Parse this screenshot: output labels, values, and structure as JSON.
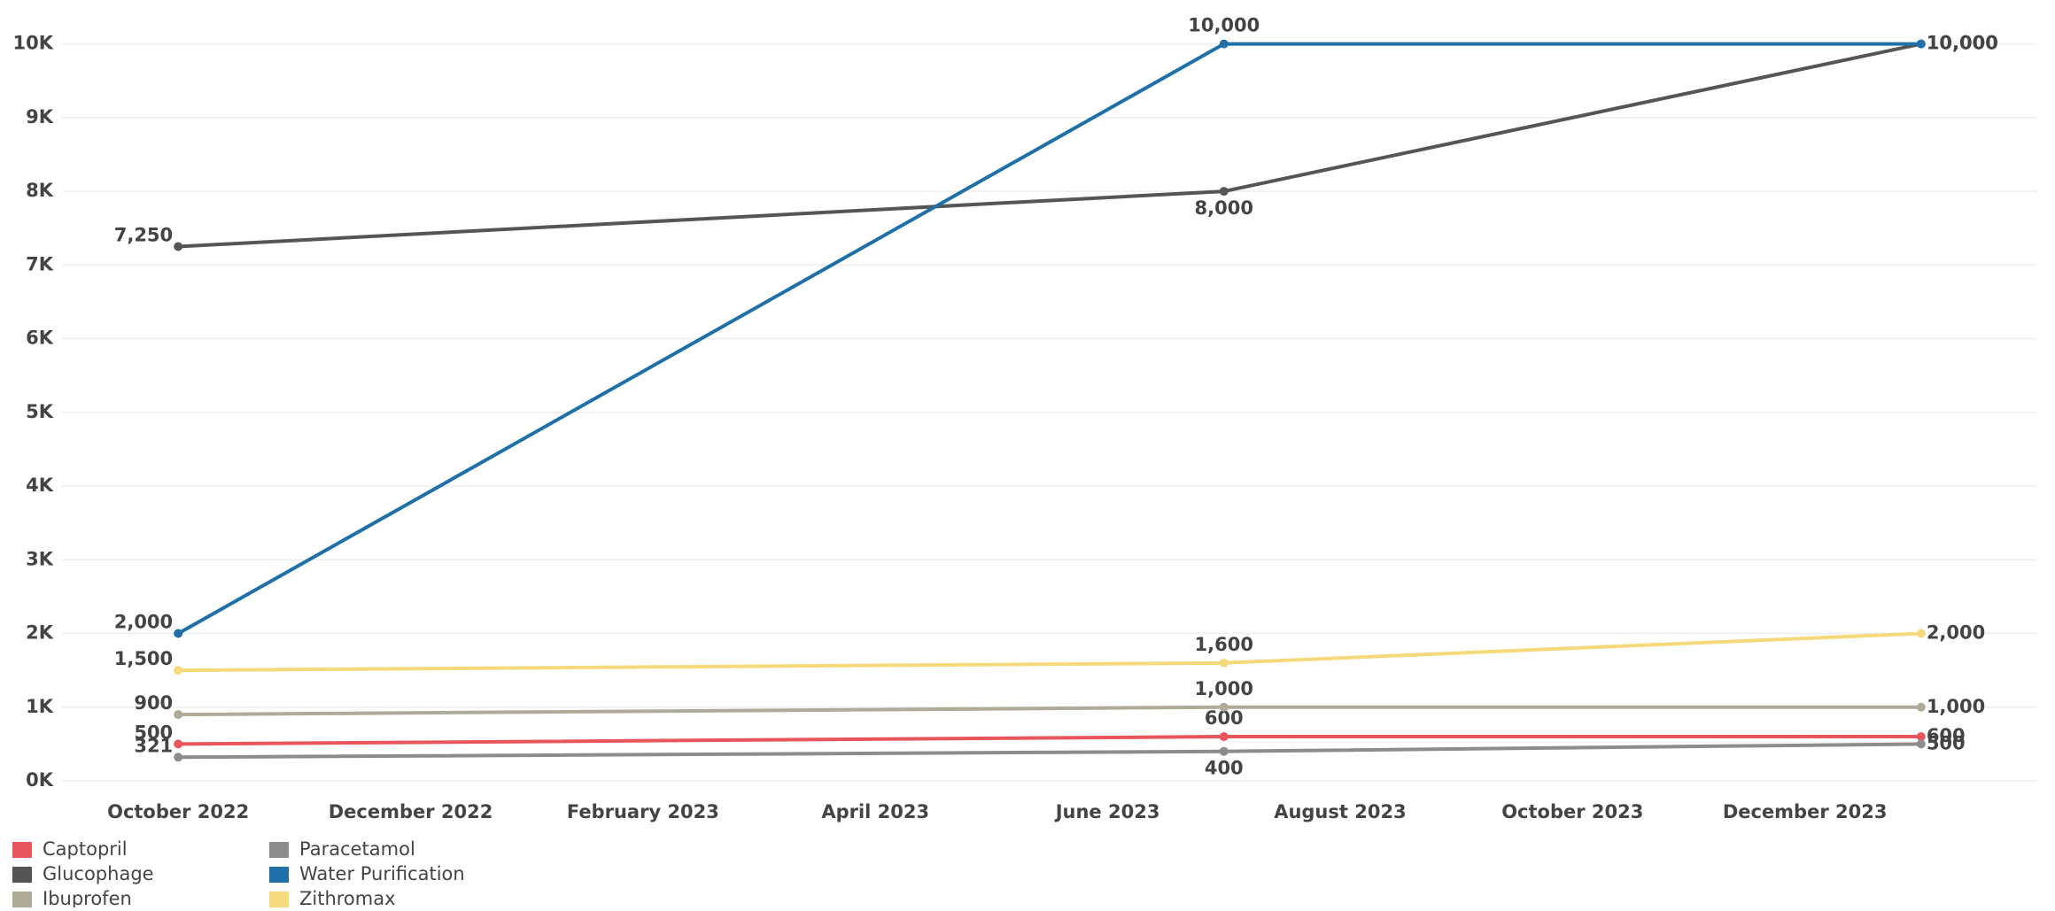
{
  "chart_data": {
    "type": "line",
    "x": [
      "2022-10",
      "2023-07",
      "2024-01"
    ],
    "xlim": [
      "2022-09",
      "2024-02"
    ],
    "xticks": [
      {
        "value": "2022-10",
        "label": "October 2022"
      },
      {
        "value": "2022-12",
        "label": "December 2022"
      },
      {
        "value": "2023-02",
        "label": "February 2023"
      },
      {
        "value": "2023-04",
        "label": "April 2023"
      },
      {
        "value": "2023-06",
        "label": "June 2023"
      },
      {
        "value": "2023-08",
        "label": "August 2023"
      },
      {
        "value": "2023-10",
        "label": "October 2023"
      },
      {
        "value": "2023-12",
        "label": "December 2023"
      }
    ],
    "ylim": [
      0,
      10500
    ],
    "yticks": [
      {
        "value": 0,
        "label": "0K"
      },
      {
        "value": 1000,
        "label": "1K"
      },
      {
        "value": 2000,
        "label": "2K"
      },
      {
        "value": 3000,
        "label": "3K"
      },
      {
        "value": 4000,
        "label": "4K"
      },
      {
        "value": 5000,
        "label": "5K"
      },
      {
        "value": 6000,
        "label": "6K"
      },
      {
        "value": 7000,
        "label": "7K"
      },
      {
        "value": 8000,
        "label": "8K"
      },
      {
        "value": 9000,
        "label": "9K"
      },
      {
        "value": 10000,
        "label": "10K"
      }
    ],
    "grid": true,
    "legend": "bottom-left",
    "series": [
      {
        "name": "Captopril",
        "color": "#e8555a",
        "values": [
          500,
          600,
          600
        ],
        "value_labels": [
          "500",
          "600",
          "600"
        ]
      },
      {
        "name": "Glucophage",
        "color": "#555555",
        "values": [
          7250,
          8000,
          10000
        ],
        "value_labels": [
          "7,250",
          "8,000",
          "10,000"
        ]
      },
      {
        "name": "Ibuprofen",
        "color": "#b0aa98",
        "values": [
          900,
          1000,
          1000
        ],
        "value_labels": [
          "900",
          "1,000",
          "1,000"
        ]
      },
      {
        "name": "Paracetamol",
        "color": "#8c8c8c",
        "values": [
          321,
          400,
          500
        ],
        "value_labels": [
          "321",
          "400",
          "500"
        ]
      },
      {
        "name": "Water Purification",
        "color": "#1f6fa8",
        "values": [
          2000,
          10000,
          10000
        ],
        "value_labels": [
          "2,000",
          "10,000",
          "10,000"
        ]
      },
      {
        "name": "Zithromax",
        "color": "#f5d97a",
        "values": [
          1500,
          1600,
          2000
        ],
        "value_labels": [
          "1,500",
          "1,600",
          "2,000"
        ]
      }
    ]
  }
}
